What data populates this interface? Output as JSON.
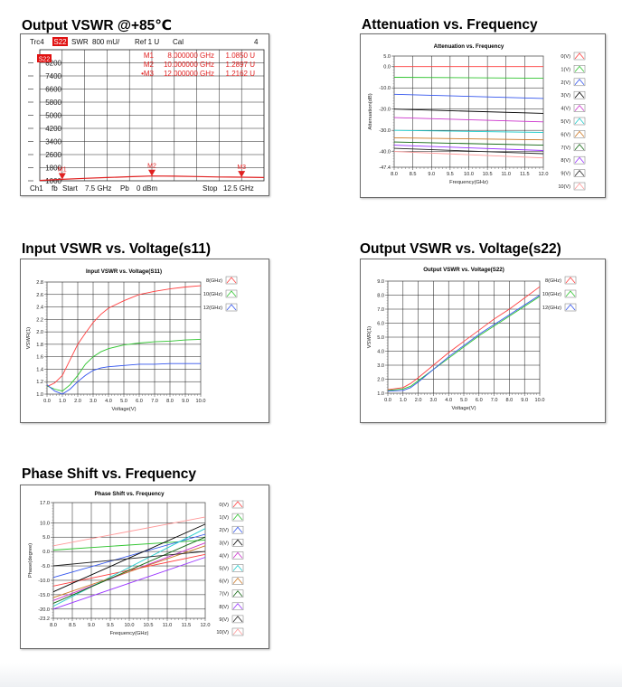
{
  "titles": {
    "vswr85": "Output VSWR @+85℃",
    "atten": "Attenuation vs. Frequency",
    "in_vswr": "Input VSWR vs. Voltage(s11)",
    "out_vswr": "Output VSWR vs. Voltage(s22)",
    "phase": "Phase Shift vs. Frequency"
  },
  "colors": {
    "v0": "#ff4040",
    "v1": "#2fc42f",
    "v2": "#3355ee",
    "v3": "#000000",
    "v4": "#cc33cc",
    "v5": "#22cccc",
    "v6": "#cc7722",
    "v7": "#116611",
    "v8": "#9933ff",
    "v9": "#222222",
    "v10": "#ff9999",
    "ghz8": "#ff4040",
    "ghz10": "#2fc42f",
    "ghz12": "#3355ee",
    "vna_trace": "#e02020",
    "vna_text": "#e02020"
  },
  "chart_data": [
    {
      "id": "vswr85",
      "type": "line",
      "header": {
        "trc": "Trc4",
        "param": "S22",
        "format": "SWR",
        "scale": "800 mU/",
        "ref": "Ref 1 U",
        "cal": "Cal",
        "num": "4"
      },
      "footer": {
        "ch": "Ch1",
        "fb": "fb",
        "start": "Start",
        "start_val": "7.5 GHz",
        "pb": "Pb",
        "pb_val": "0 dBm",
        "stop": "Stop",
        "stop_val": "12.5 GHz"
      },
      "marker_table": [
        {
          "name": "M1",
          "freq": "8.000000 GHz",
          "val": "1.0850 U"
        },
        {
          "name": "M2",
          "freq": "10.000000 GHz",
          "val": "1.2897 U"
        },
        {
          "name": "•M3",
          "freq": "12.000000 GHz",
          "val": "1.2162 U"
        }
      ],
      "ytick_labels": [
        "8200",
        "7400",
        "6600",
        "5800",
        "5000",
        "4200",
        "3400",
        "2600",
        "1800",
        "1000"
      ],
      "ref_label": "S22",
      "x": [
        7.5,
        8,
        8.5,
        9,
        9.5,
        10,
        10.5,
        11,
        11.5,
        12,
        12.5
      ],
      "values": [
        1.02,
        1.09,
        1.15,
        1.2,
        1.25,
        1.29,
        1.28,
        1.26,
        1.23,
        1.22,
        1.2
      ],
      "xlim": [
        7.5,
        12.5
      ],
      "ylim": [
        1,
        9
      ],
      "markers": [
        {
          "label": "M1",
          "x": 8,
          "y": 1.085
        },
        {
          "label": "M2",
          "x": 10,
          "y": 1.29
        },
        {
          "label": "M3",
          "x": 12,
          "y": 1.216
        }
      ]
    },
    {
      "id": "atten",
      "type": "line",
      "title": "Attenuation vs. Frequency",
      "xlabel": "Frequency(GHz)",
      "ylabel": "Attenuation(dB)",
      "xlim": [
        8,
        12
      ],
      "ylim": [
        -47.4,
        5
      ],
      "xticks": [
        "8.0",
        "8.5",
        "9.0",
        "9.5",
        "10.0",
        "10.5",
        "11.0",
        "11.5",
        "12.0"
      ],
      "yticks": [
        "5.0",
        "0.0",
        "-10.0",
        "-20.0",
        "-30.0",
        "-40.0",
        "-47.4"
      ],
      "x": [
        8,
        12
      ],
      "series": [
        {
          "name": "0(V)",
          "values": [
            0,
            0
          ]
        },
        {
          "name": "1(V)",
          "values": [
            -5,
            -5.5
          ]
        },
        {
          "name": "2(V)",
          "values": [
            -13,
            -15
          ]
        },
        {
          "name": "3(V)",
          "values": [
            -20,
            -22
          ]
        },
        {
          "name": "4(V)",
          "values": [
            -24,
            -26
          ]
        },
        {
          "name": "5(V)",
          "values": [
            -30,
            -31
          ]
        },
        {
          "name": "6(V)",
          "values": [
            -33.5,
            -34.5
          ]
        },
        {
          "name": "7(V)",
          "values": [
            -35.5,
            -37
          ]
        },
        {
          "name": "8(V)",
          "values": [
            -37,
            -39.5
          ]
        },
        {
          "name": "9(V)",
          "values": [
            -38.5,
            -41
          ]
        },
        {
          "name": "10(V)",
          "values": [
            -40,
            -43
          ]
        }
      ]
    },
    {
      "id": "in_vswr",
      "type": "line",
      "title": "Input VSWR vs. Voltage(S11)",
      "xlabel": "Voltage(V)",
      "ylabel": "VSWR(1)",
      "xlim": [
        0,
        10
      ],
      "ylim": [
        1,
        2.8
      ],
      "xticks": [
        "0.0",
        "1.0",
        "2.0",
        "3.0",
        "4.0",
        "5.0",
        "6.0",
        "7.0",
        "8.0",
        "9.0",
        "10.0"
      ],
      "yticks": [
        "2.8",
        "2.6",
        "2.4",
        "2.2",
        "2.0",
        "1.8",
        "1.6",
        "1.4",
        "1.2",
        "1.0"
      ],
      "x": [
        0,
        0.5,
        1,
        1.5,
        2,
        2.5,
        3,
        3.5,
        4,
        5,
        6,
        7,
        8,
        9,
        10
      ],
      "series": [
        {
          "name": "8(GHz)",
          "values": [
            1.12,
            1.18,
            1.3,
            1.55,
            1.8,
            1.98,
            2.15,
            2.28,
            2.38,
            2.5,
            2.6,
            2.65,
            2.69,
            2.72,
            2.74
          ]
        },
        {
          "name": "10(GHz)",
          "values": [
            1.13,
            1.08,
            1.05,
            1.15,
            1.3,
            1.48,
            1.6,
            1.68,
            1.73,
            1.79,
            1.82,
            1.84,
            1.85,
            1.87,
            1.88
          ]
        },
        {
          "name": "12(GHz)",
          "values": [
            1.15,
            1.05,
            1.0,
            1.08,
            1.2,
            1.3,
            1.38,
            1.42,
            1.44,
            1.46,
            1.48,
            1.48,
            1.49,
            1.49,
            1.49
          ]
        }
      ]
    },
    {
      "id": "out_vswr",
      "type": "line",
      "title": "Output VSWR vs. Voltage(S22)",
      "xlabel": "Voltage(V)",
      "ylabel": "VSWR(1)",
      "xlim": [
        0,
        10
      ],
      "ylim": [
        1,
        9
      ],
      "xticks": [
        "0.0",
        "1.0",
        "2.0",
        "3.0",
        "4.0",
        "5.0",
        "6.0",
        "7.0",
        "8.0",
        "9.0",
        "10.0"
      ],
      "yticks": [
        "9.0",
        "8.0",
        "7.0",
        "6.0",
        "5.0",
        "4.0",
        "3.0",
        "2.0",
        "1.0"
      ],
      "x": [
        0,
        1,
        1.5,
        2,
        3,
        4,
        5,
        6,
        7,
        8,
        9,
        10
      ],
      "series": [
        {
          "name": "8(GHz)",
          "values": [
            1.25,
            1.4,
            1.7,
            2.1,
            3.0,
            3.9,
            4.7,
            5.5,
            6.3,
            7.0,
            7.8,
            8.6
          ]
        },
        {
          "name": "10(GHz)",
          "values": [
            1.2,
            1.3,
            1.5,
            1.9,
            2.7,
            3.5,
            4.3,
            5.1,
            5.8,
            6.5,
            7.2,
            7.9
          ]
        },
        {
          "name": "12(GHz)",
          "values": [
            1.15,
            1.2,
            1.4,
            1.8,
            2.7,
            3.6,
            4.4,
            5.2,
            5.9,
            6.6,
            7.3,
            8.0
          ]
        }
      ]
    },
    {
      "id": "phase",
      "type": "line",
      "title": "Phase Shift vs. Frequency",
      "xlabel": "Frequency(GHz)",
      "ylabel": "Phase(degree)",
      "xlim": [
        8,
        12
      ],
      "ylim": [
        -23.2,
        17
      ],
      "xticks": [
        "8.0",
        "8.5",
        "9.0",
        "9.5",
        "10.0",
        "10.5",
        "11.0",
        "11.5",
        "12.0"
      ],
      "yticks": [
        "17.0",
        "10.0",
        "5.0",
        "0.0",
        "-5.0",
        "-10.0",
        "-15.0",
        "-20.0",
        "-23.2"
      ],
      "x": [
        8,
        12
      ],
      "series": [
        {
          "name": "0(V)",
          "values": [
            -12,
            -1
          ]
        },
        {
          "name": "1(V)",
          "values": [
            0.5,
            4
          ]
        },
        {
          "name": "2(V)",
          "values": [
            -9,
            6
          ]
        },
        {
          "name": "3(V)",
          "values": [
            -14,
            9.5
          ]
        },
        {
          "name": "4(V)",
          "values": [
            -17,
            3
          ]
        },
        {
          "name": "5(V)",
          "values": [
            -19,
            8
          ]
        },
        {
          "name": "6(V)",
          "values": [
            -16,
            2
          ]
        },
        {
          "name": "7(V)",
          "values": [
            -18,
            5
          ]
        },
        {
          "name": "8(V)",
          "values": [
            -20,
            -2
          ]
        },
        {
          "name": "9(V)",
          "values": [
            -5,
            0
          ]
        },
        {
          "name": "10(V)",
          "values": [
            2,
            12
          ]
        }
      ]
    }
  ]
}
